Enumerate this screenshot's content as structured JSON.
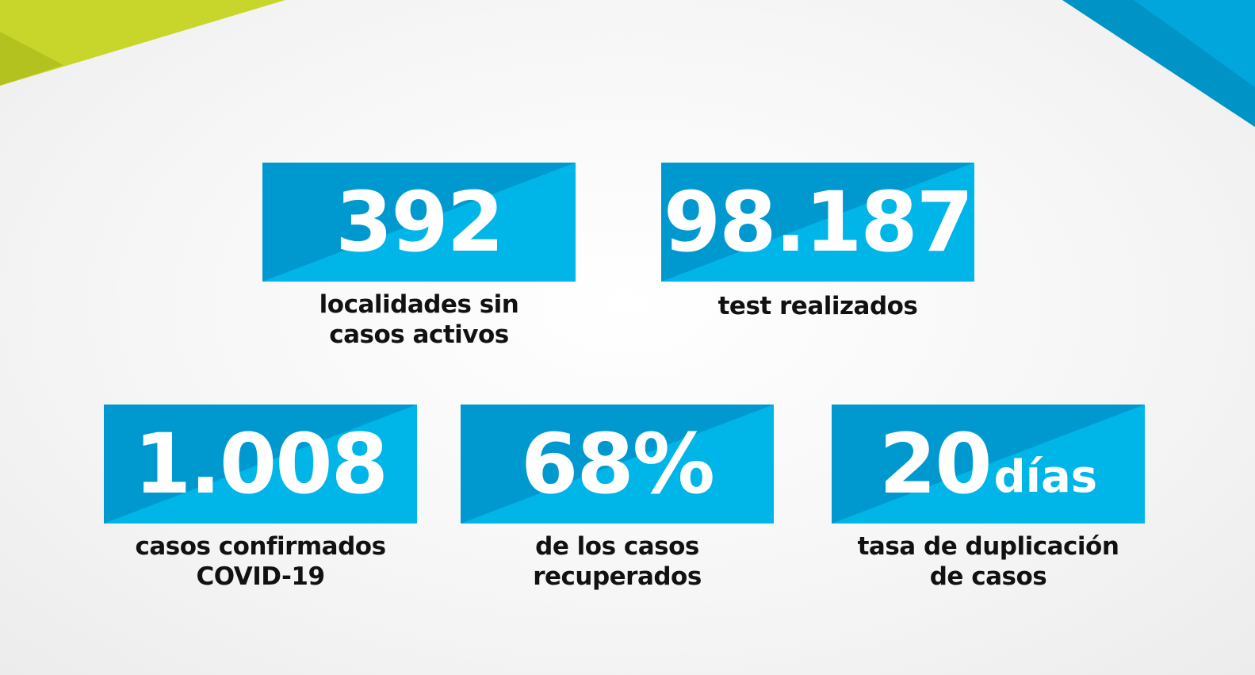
{
  "colors": {
    "box_light": "#00b5e8",
    "box_dark": "#0099cf",
    "text": "#111111",
    "accent_green": "#c8d52b",
    "accent_blue": "#00a6dc"
  },
  "stats": {
    "localidades": {
      "value": "392",
      "unit": "",
      "line1": "localidades sin",
      "line2": "casos activos"
    },
    "tests": {
      "value": "98.187",
      "unit": "",
      "line1": "test realizados",
      "line2": ""
    },
    "confirmados": {
      "value": "1.008",
      "unit": "",
      "line1": "casos confirmados",
      "line2": "COVID-19"
    },
    "recuperados": {
      "value": "68%",
      "unit": "",
      "line1": "de los casos",
      "line2": "recuperados"
    },
    "duplicacion": {
      "value": "20",
      "unit": "días",
      "line1": "tasa de duplicación",
      "line2": "de casos"
    }
  }
}
